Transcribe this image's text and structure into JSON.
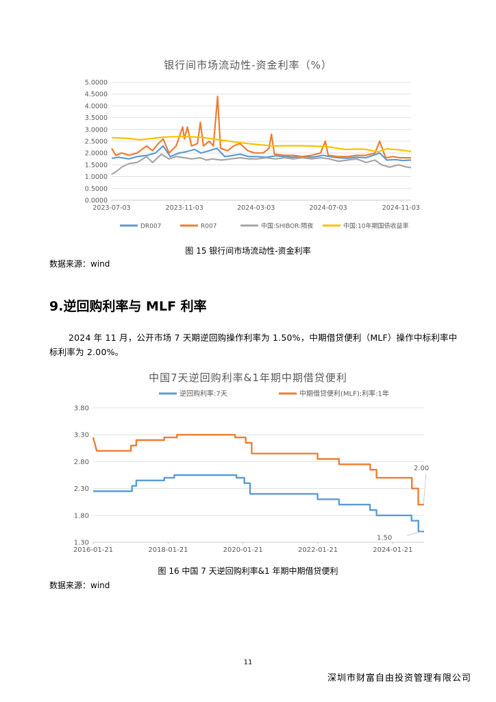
{
  "chart1": {
    "title": "银行间市场流动性-资金利率（%）",
    "caption": "图 15 银行间市场流动性-资金利率",
    "source": "数据来源：wind",
    "chart_data": {
      "type": "line",
      "title": "银行间市场流动性-资金利率（%）",
      "y_tick_labels": [
        "0.0000",
        "0.5000",
        "1.0000",
        "1.5000",
        "2.0000",
        "2.5000",
        "3.0000",
        "3.5000",
        "4.0000",
        "4.5000",
        "5.0000"
      ],
      "x_tick_labels": [
        "2023-07-03",
        "2023-11-03",
        "2024-03-03",
        "2024-07-03",
        "2024-11-03"
      ],
      "ylim": [
        0,
        5
      ],
      "xlim": [
        "2023-07-03",
        "2024-11-20"
      ],
      "grid": true,
      "legend_position": "bottom",
      "series": [
        {
          "name": "DR007",
          "color": "#5b9bd5",
          "points": [
            [
              "2023-07-03",
              1.78
            ],
            [
              "2023-07-15",
              1.82
            ],
            [
              "2023-08-01",
              1.75
            ],
            [
              "2023-08-15",
              1.85
            ],
            [
              "2023-09-01",
              1.9
            ],
            [
              "2023-09-15",
              2.0
            ],
            [
              "2023-09-28",
              2.3
            ],
            [
              "2023-10-10",
              1.85
            ],
            [
              "2023-10-25",
              2.0
            ],
            [
              "2023-11-05",
              2.05
            ],
            [
              "2023-11-20",
              2.15
            ],
            [
              "2023-12-01",
              2.0
            ],
            [
              "2023-12-15",
              2.1
            ],
            [
              "2023-12-28",
              2.2
            ],
            [
              "2024-01-10",
              1.85
            ],
            [
              "2024-01-25",
              1.9
            ],
            [
              "2024-02-05",
              1.95
            ],
            [
              "2024-02-20",
              1.85
            ],
            [
              "2024-03-05",
              1.85
            ],
            [
              "2024-03-20",
              1.82
            ],
            [
              "2024-04-05",
              1.88
            ],
            [
              "2024-04-20",
              1.85
            ],
            [
              "2024-05-05",
              1.82
            ],
            [
              "2024-05-20",
              1.85
            ],
            [
              "2024-06-05",
              1.82
            ],
            [
              "2024-06-25",
              1.9
            ],
            [
              "2024-07-05",
              1.85
            ],
            [
              "2024-07-20",
              1.8
            ],
            [
              "2024-08-05",
              1.78
            ],
            [
              "2024-08-20",
              1.82
            ],
            [
              "2024-09-05",
              1.8
            ],
            [
              "2024-09-28",
              2.0
            ],
            [
              "2024-10-10",
              1.7
            ],
            [
              "2024-10-25",
              1.72
            ],
            [
              "2024-11-05",
              1.68
            ],
            [
              "2024-11-20",
              1.7
            ]
          ]
        },
        {
          "name": "R007",
          "color": "#ed7d31",
          "points": [
            [
              "2023-07-03",
              2.2
            ],
            [
              "2023-07-10",
              1.9
            ],
            [
              "2023-07-20",
              2.0
            ],
            [
              "2023-08-01",
              1.9
            ],
            [
              "2023-08-15",
              2.0
            ],
            [
              "2023-08-31",
              2.3
            ],
            [
              "2023-09-10",
              2.1
            ],
            [
              "2023-09-20",
              2.4
            ],
            [
              "2023-09-28",
              2.6
            ],
            [
              "2023-10-08",
              2.0
            ],
            [
              "2023-10-20",
              2.3
            ],
            [
              "2023-10-31",
              3.1
            ],
            [
              "2023-11-03",
              2.6
            ],
            [
              "2023-11-08",
              3.1
            ],
            [
              "2023-11-15",
              2.3
            ],
            [
              "2023-11-25",
              2.4
            ],
            [
              "2023-11-30",
              3.3
            ],
            [
              "2023-12-05",
              2.3
            ],
            [
              "2023-12-15",
              2.5
            ],
            [
              "2023-12-22",
              2.3
            ],
            [
              "2023-12-29",
              4.4
            ],
            [
              "2024-01-03",
              2.2
            ],
            [
              "2024-01-15",
              2.1
            ],
            [
              "2024-01-25",
              2.3
            ],
            [
              "2024-02-05",
              2.4
            ],
            [
              "2024-02-18",
              2.1
            ],
            [
              "2024-03-01",
              2.0
            ],
            [
              "2024-03-15",
              2.0
            ],
            [
              "2024-03-25",
              2.2
            ],
            [
              "2024-03-29",
              2.8
            ],
            [
              "2024-04-03",
              1.95
            ],
            [
              "2024-04-20",
              1.9
            ],
            [
              "2024-05-05",
              1.9
            ],
            [
              "2024-05-20",
              1.85
            ],
            [
              "2024-06-05",
              1.9
            ],
            [
              "2024-06-20",
              2.0
            ],
            [
              "2024-06-28",
              2.5
            ],
            [
              "2024-07-03",
              1.9
            ],
            [
              "2024-07-20",
              1.85
            ],
            [
              "2024-08-05",
              1.85
            ],
            [
              "2024-08-20",
              1.9
            ],
            [
              "2024-09-05",
              1.9
            ],
            [
              "2024-09-20",
              2.0
            ],
            [
              "2024-09-28",
              2.5
            ],
            [
              "2024-10-08",
              1.8
            ],
            [
              "2024-10-20",
              1.85
            ],
            [
              "2024-11-01",
              1.8
            ],
            [
              "2024-11-20",
              1.8
            ]
          ]
        },
        {
          "name": "中国:SHIBOR:隔夜",
          "color": "#a5a5a5",
          "points": [
            [
              "2023-07-03",
              1.1
            ],
            [
              "2023-07-10",
              1.2
            ],
            [
              "2023-07-20",
              1.4
            ],
            [
              "2023-08-01",
              1.55
            ],
            [
              "2023-08-15",
              1.6
            ],
            [
              "2023-08-31",
              1.85
            ],
            [
              "2023-09-10",
              1.6
            ],
            [
              "2023-09-25",
              1.95
            ],
            [
              "2023-10-08",
              1.75
            ],
            [
              "2023-10-20",
              1.85
            ],
            [
              "2023-11-03",
              1.8
            ],
            [
              "2023-11-15",
              1.75
            ],
            [
              "2023-11-30",
              1.8
            ],
            [
              "2023-12-10",
              1.7
            ],
            [
              "2023-12-20",
              1.75
            ],
            [
              "2024-01-05",
              1.7
            ],
            [
              "2024-01-20",
              1.75
            ],
            [
              "2024-02-05",
              1.8
            ],
            [
              "2024-02-20",
              1.75
            ],
            [
              "2024-03-05",
              1.75
            ],
            [
              "2024-03-20",
              1.8
            ],
            [
              "2024-04-05",
              1.75
            ],
            [
              "2024-04-20",
              1.8
            ],
            [
              "2024-05-05",
              1.75
            ],
            [
              "2024-05-20",
              1.8
            ],
            [
              "2024-06-05",
              1.75
            ],
            [
              "2024-06-20",
              1.8
            ],
            [
              "2024-07-05",
              1.75
            ],
            [
              "2024-07-20",
              1.65
            ],
            [
              "2024-08-05",
              1.7
            ],
            [
              "2024-08-20",
              1.75
            ],
            [
              "2024-09-05",
              1.6
            ],
            [
              "2024-09-20",
              1.7
            ],
            [
              "2024-10-01",
              1.5
            ],
            [
              "2024-10-15",
              1.4
            ],
            [
              "2024-10-30",
              1.5
            ],
            [
              "2024-11-10",
              1.42
            ],
            [
              "2024-11-20",
              1.38
            ]
          ]
        },
        {
          "name": "中国:10年期国债收益率",
          "color": "#ffc000",
          "points": [
            [
              "2023-07-03",
              2.65
            ],
            [
              "2023-08-01",
              2.62
            ],
            [
              "2023-08-20",
              2.56
            ],
            [
              "2023-09-10",
              2.62
            ],
            [
              "2023-10-01",
              2.68
            ],
            [
              "2023-11-01",
              2.7
            ],
            [
              "2023-12-01",
              2.67
            ],
            [
              "2024-01-01",
              2.56
            ],
            [
              "2024-02-01",
              2.45
            ],
            [
              "2024-03-01",
              2.37
            ],
            [
              "2024-04-01",
              2.3
            ],
            [
              "2024-05-01",
              2.31
            ],
            [
              "2024-06-01",
              2.3
            ],
            [
              "2024-07-01",
              2.27
            ],
            [
              "2024-08-01",
              2.15
            ],
            [
              "2024-09-01",
              2.17
            ],
            [
              "2024-09-25",
              2.05
            ],
            [
              "2024-10-10",
              2.18
            ],
            [
              "2024-11-01",
              2.13
            ],
            [
              "2024-11-20",
              2.07
            ]
          ]
        }
      ]
    }
  },
  "section": {
    "heading": "9.逆回购利率与 MLF 利率",
    "paragraph": "2024 年 11 月，公开市场 7 天期逆回购操作利率为 1.50%，中期借贷便利（MLF）操作中标利率中标利率为 2.00%。"
  },
  "chart2": {
    "title": "中国7天逆回购利率&1年期中期借贷便利",
    "caption": "图 16 中国 7 天逆回购利率&1 年期中期借贷便利",
    "source": "数据来源：wind",
    "chart_data": {
      "type": "line",
      "title": "中国7天逆回购利率&1年期中期借贷便利",
      "y_tick_labels": [
        "1.30",
        "1.80",
        "2.30",
        "2.80",
        "3.30",
        "3.80"
      ],
      "x_tick_labels": [
        "2016-01-21",
        "2018-01-21",
        "2020-01-21",
        "2022-01-21",
        "2024-01-21"
      ],
      "ylim": [
        1.3,
        3.8
      ],
      "xlim": [
        "2016-01-21",
        "2024-11-21"
      ],
      "grid": true,
      "legend_position": "top",
      "annotations": [
        {
          "text": "2.00",
          "series": "中期借贷便利(MLF):利率:1年"
        },
        {
          "text": "1.50",
          "series": "逆回购利率:7天"
        }
      ],
      "series": [
        {
          "name": "逆回购利率:7天",
          "color": "#5b9bd5",
          "points": [
            [
              "2016-01-21",
              2.25
            ],
            [
              "2017-02-03",
              2.25
            ],
            [
              "2017-02-03",
              2.35
            ],
            [
              "2017-03-16",
              2.35
            ],
            [
              "2017-03-16",
              2.45
            ],
            [
              "2017-12-14",
              2.45
            ],
            [
              "2017-12-14",
              2.5
            ],
            [
              "2018-03-22",
              2.5
            ],
            [
              "2018-03-22",
              2.55
            ],
            [
              "2019-11-18",
              2.55
            ],
            [
              "2019-11-18",
              2.5
            ],
            [
              "2020-02-03",
              2.5
            ],
            [
              "2020-02-03",
              2.4
            ],
            [
              "2020-03-30",
              2.4
            ],
            [
              "2020-03-30",
              2.2
            ],
            [
              "2021-12-20",
              2.2
            ],
            [
              "2022-01-17",
              2.2
            ],
            [
              "2022-01-17",
              2.1
            ],
            [
              "2022-08-15",
              2.1
            ],
            [
              "2022-08-15",
              2.0
            ],
            [
              "2023-06-13",
              2.0
            ],
            [
              "2023-06-13",
              1.9
            ],
            [
              "2023-08-15",
              1.9
            ],
            [
              "2023-08-15",
              1.8
            ],
            [
              "2024-07-22",
              1.8
            ],
            [
              "2024-07-22",
              1.7
            ],
            [
              "2024-09-27",
              1.7
            ],
            [
              "2024-09-27",
              1.5
            ],
            [
              "2024-11-21",
              1.5
            ]
          ]
        },
        {
          "name": "中期借贷便利(MLF):利率:1年",
          "color": "#ed7d31",
          "points": [
            [
              "2016-01-21",
              3.25
            ],
            [
              "2016-02-25",
              3.0
            ],
            [
              "2017-01-24",
              3.0
            ],
            [
              "2017-01-24",
              3.1
            ],
            [
              "2017-03-16",
              3.1
            ],
            [
              "2017-03-16",
              3.2
            ],
            [
              "2017-12-14",
              3.2
            ],
            [
              "2017-12-14",
              3.25
            ],
            [
              "2018-04-17",
              3.25
            ],
            [
              "2018-04-17",
              3.3
            ],
            [
              "2019-11-05",
              3.3
            ],
            [
              "2019-11-05",
              3.25
            ],
            [
              "2020-02-17",
              3.25
            ],
            [
              "2020-02-17",
              3.15
            ],
            [
              "2020-04-15",
              3.15
            ],
            [
              "2020-04-15",
              2.95
            ],
            [
              "2022-01-17",
              2.95
            ],
            [
              "2022-01-17",
              2.85
            ],
            [
              "2022-08-15",
              2.85
            ],
            [
              "2022-08-15",
              2.75
            ],
            [
              "2023-06-15",
              2.75
            ],
            [
              "2023-06-15",
              2.65
            ],
            [
              "2023-08-15",
              2.65
            ],
            [
              "2023-08-15",
              2.5
            ],
            [
              "2024-07-25",
              2.5
            ],
            [
              "2024-07-25",
              2.3
            ],
            [
              "2024-09-25",
              2.3
            ],
            [
              "2024-09-25",
              2.0
            ],
            [
              "2024-11-21",
              2.0
            ]
          ]
        }
      ]
    }
  },
  "footer": {
    "page_number": "11",
    "company": "深圳市财富自由投资管理有限公司"
  }
}
